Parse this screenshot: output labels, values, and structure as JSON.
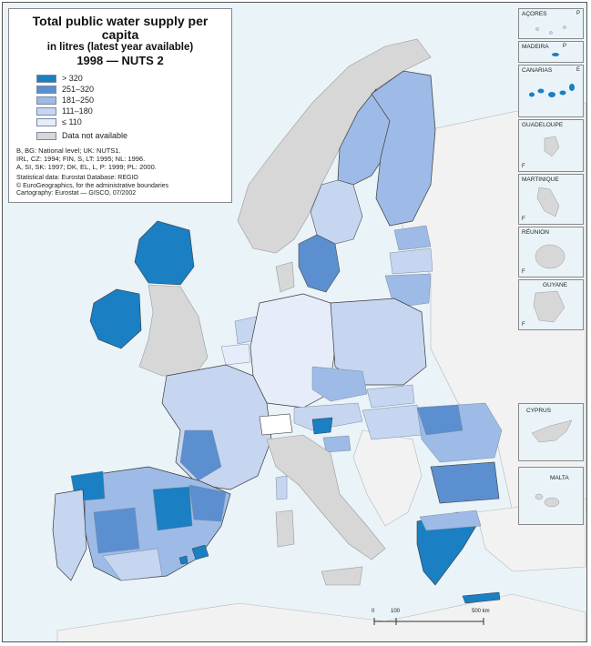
{
  "title": "Total public water supply per capita",
  "subtitle": "in litres (latest year available)",
  "title_line3": "1998 — NUTS 2",
  "legend": [
    {
      "label": "> 320",
      "color": "#1a7fc3"
    },
    {
      "label": "251–320",
      "color": "#5b8fd0"
    },
    {
      "label": "181–250",
      "color": "#9dbbe6"
    },
    {
      "label": "111–180",
      "color": "#c6d6f1"
    },
    {
      "label": "≤ 110",
      "color": "#e6ecf9"
    },
    {
      "label": "Data not available",
      "color": "#d7d7d7"
    }
  ],
  "notes": [
    "B, BG: National level; UK: NUTS1.",
    "IRL, CZ: 1994; FIN, S, LT: 1995; NL: 1996.",
    "A, SI, SK: 1997; DK, EL, L, P: 1999; PL: 2000."
  ],
  "sources": [
    "Statistical data: Eurostat Database: REGIO",
    "© EuroGeographics, for the administrative boundaries",
    "Cartography: Eurostat — GISCO, 07/2002"
  ],
  "insets": [
    {
      "name": "AÇORES",
      "code": "P"
    },
    {
      "name": "MADEIRA",
      "code": "P"
    },
    {
      "name": "CANARIAS",
      "code": "E"
    },
    {
      "name": "GUADELOUPE",
      "code": "F"
    },
    {
      "name": "MARTINIQUE",
      "code": "F"
    },
    {
      "name": "RÉUNION",
      "code": "F"
    },
    {
      "name": "GUYANE",
      "code": "F"
    },
    {
      "name": "CYPRUS",
      "code": ""
    },
    {
      "name": "MALTA",
      "code": ""
    }
  ],
  "scale_labels": [
    "0",
    "100",
    "500 km"
  ],
  "colors": {
    "sea": "#e9f3f8",
    "non_eu_land": "#f2f2f2",
    "na": "#d7d7d7",
    "c1": "#1a7fc3",
    "c2": "#5b8fd0",
    "c3": "#9dbbe6",
    "c4": "#c6d6f1",
    "c5": "#e6ecf9"
  }
}
